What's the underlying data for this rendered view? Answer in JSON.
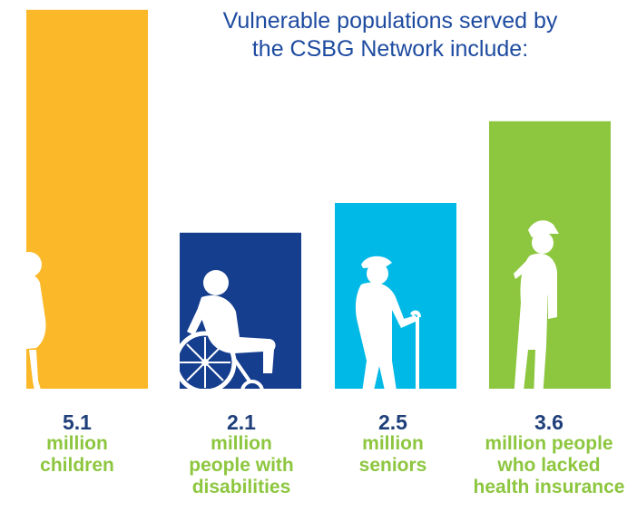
{
  "title_lines": [
    "Vulnerable populations served by",
    "the CSBG Network include:"
  ],
  "chart_data": {
    "type": "bar",
    "unit": "million",
    "values": [
      5.1,
      2.1,
      2.5,
      3.6
    ],
    "value_labels": [
      "5.1",
      "2.1",
      "2.5",
      "3.6"
    ],
    "category_labels": [
      [
        "million",
        "children"
      ],
      [
        "million",
        "people with",
        "disabilities"
      ],
      [
        "million",
        "seniors"
      ],
      [
        "million people",
        "who lacked",
        "health insurance"
      ]
    ],
    "colors": [
      "#fbb828",
      "#163e8e",
      "#00b9e6",
      "#8dc63f"
    ],
    "icons": [
      "child-silhouette-icon",
      "wheelchair-user-silhouette-icon",
      "senior-with-cane-silhouette-icon",
      "man-with-cap-silhouette-icon"
    ]
  }
}
